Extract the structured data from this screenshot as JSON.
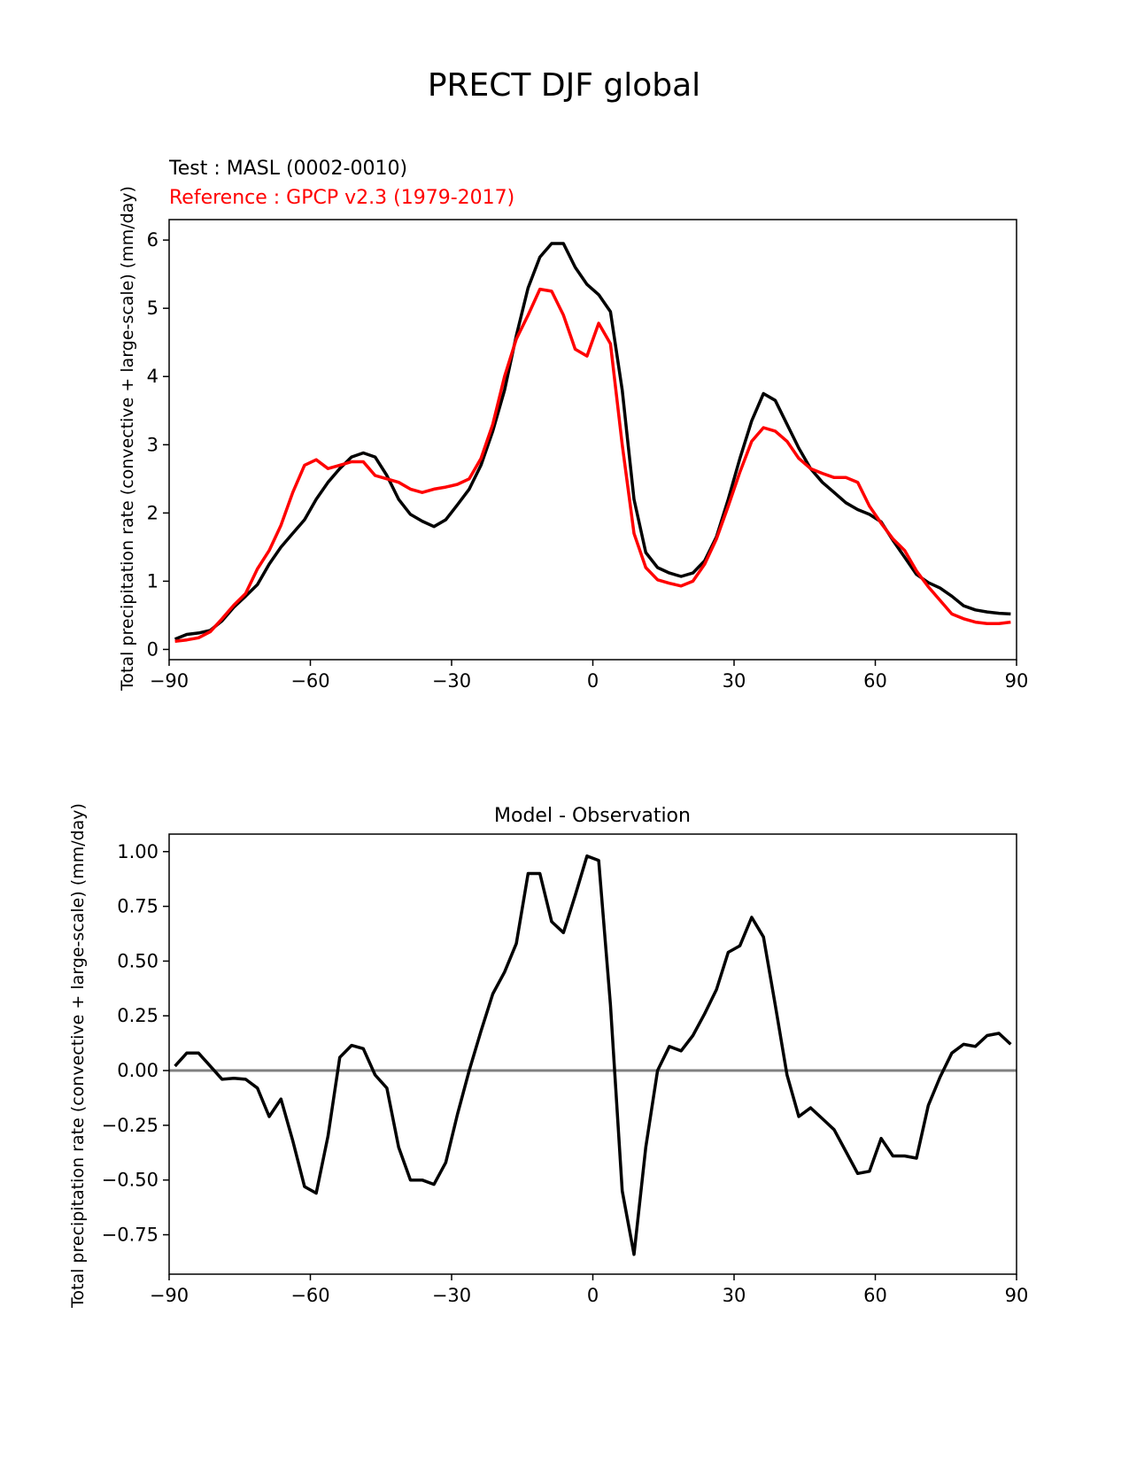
{
  "figure": {
    "title": "PRECT DJF global"
  },
  "chart_data": [
    {
      "type": "line",
      "test_label": "Test : MASL (0002-0010)",
      "reference_label": "Reference : GPCP v2.3 (1979-2017)",
      "ylabel": "Total precipitation rate (convective + large-scale) (mm/day)",
      "xlabel": "",
      "xlim": [
        -90,
        90
      ],
      "ylim": [
        -0.15,
        6.3
      ],
      "xticks": [
        "−90",
        "−60",
        "−30",
        "0",
        "30",
        "60",
        "90"
      ],
      "yticks": [
        "0",
        "1",
        "2",
        "3",
        "4",
        "5",
        "6"
      ],
      "grid": false,
      "x": [
        -88.75,
        -86.25,
        -83.75,
        -81.25,
        -78.75,
        -76.25,
        -73.75,
        -71.25,
        -68.75,
        -66.25,
        -63.75,
        -61.25,
        -58.75,
        -56.25,
        -53.75,
        -51.25,
        -48.75,
        -46.25,
        -43.75,
        -41.25,
        -38.75,
        -36.25,
        -33.75,
        -31.25,
        -28.75,
        -26.25,
        -23.75,
        -21.25,
        -18.75,
        -16.25,
        -13.75,
        -11.25,
        -8.75,
        -6.25,
        -3.75,
        -1.25,
        1.25,
        3.75,
        6.25,
        8.75,
        11.25,
        13.75,
        16.25,
        18.75,
        21.25,
        23.75,
        26.25,
        28.75,
        31.25,
        33.75,
        36.25,
        38.75,
        41.25,
        43.75,
        46.25,
        48.75,
        51.25,
        53.75,
        56.25,
        58.75,
        61.25,
        63.75,
        66.25,
        68.75,
        71.25,
        73.75,
        76.25,
        78.75,
        81.25,
        83.75,
        86.25,
        88.75
      ],
      "series": [
        {
          "name": "Test : MASL (0002-0010)",
          "color": "#000000",
          "values": [
            0.15,
            0.22,
            0.24,
            0.28,
            0.42,
            0.62,
            0.78,
            0.95,
            1.25,
            1.5,
            1.7,
            1.9,
            2.2,
            2.45,
            2.65,
            2.82,
            2.88,
            2.82,
            2.55,
            2.2,
            1.98,
            1.88,
            1.8,
            1.9,
            2.12,
            2.35,
            2.7,
            3.2,
            3.8,
            4.6,
            5.3,
            5.75,
            5.95,
            5.95,
            5.6,
            5.35,
            5.2,
            4.95,
            3.8,
            2.2,
            1.42,
            1.2,
            1.12,
            1.07,
            1.12,
            1.3,
            1.65,
            2.2,
            2.8,
            3.35,
            3.75,
            3.65,
            3.3,
            2.95,
            2.65,
            2.45,
            2.3,
            2.15,
            2.05,
            1.98,
            1.87,
            1.6,
            1.35,
            1.1,
            0.98,
            0.9,
            0.78,
            0.64,
            0.58,
            0.55,
            0.53,
            0.52
          ]
        },
        {
          "name": "Reference : GPCP v2.3 (1979-2017)",
          "color": "#ff0000",
          "values": [
            0.12,
            0.14,
            0.17,
            0.26,
            0.45,
            0.65,
            0.82,
            1.18,
            1.45,
            1.82,
            2.3,
            2.7,
            2.78,
            2.65,
            2.7,
            2.75,
            2.75,
            2.55,
            2.5,
            2.45,
            2.35,
            2.3,
            2.35,
            2.38,
            2.42,
            2.5,
            2.8,
            3.3,
            4.0,
            4.55,
            4.9,
            5.28,
            5.25,
            4.9,
            4.4,
            4.3,
            4.78,
            4.48,
            3.0,
            1.7,
            1.2,
            1.02,
            0.97,
            0.93,
            1.0,
            1.25,
            1.62,
            2.1,
            2.6,
            3.05,
            3.25,
            3.2,
            3.05,
            2.8,
            2.65,
            2.58,
            2.52,
            2.52,
            2.45,
            2.1,
            1.85,
            1.62,
            1.45,
            1.15,
            0.92,
            0.72,
            0.52,
            0.45,
            0.4,
            0.38,
            0.38,
            0.4
          ]
        }
      ]
    },
    {
      "type": "line",
      "title": "Model - Observation",
      "ylabel": "Total precipitation rate (convective + large-scale) (mm/day)",
      "xlabel": "",
      "xlim": [
        -90,
        90
      ],
      "ylim": [
        -0.93,
        1.08
      ],
      "xticks": [
        "−90",
        "−60",
        "−30",
        "0",
        "30",
        "60",
        "90"
      ],
      "yticks": [
        "1.00",
        "0.75",
        "0.50",
        "0.25",
        "0.00",
        "−0.25",
        "−0.50",
        "−0.75"
      ],
      "zero_line": {
        "value": 0,
        "color": "#808080"
      },
      "grid": false,
      "x": [
        -88.75,
        -86.25,
        -83.75,
        -81.25,
        -78.75,
        -76.25,
        -73.75,
        -71.25,
        -68.75,
        -66.25,
        -63.75,
        -61.25,
        -58.75,
        -56.25,
        -53.75,
        -51.25,
        -48.75,
        -46.25,
        -43.75,
        -41.25,
        -38.75,
        -36.25,
        -33.75,
        -31.25,
        -28.75,
        -26.25,
        -23.75,
        -21.25,
        -18.75,
        -16.25,
        -13.75,
        -11.25,
        -8.75,
        -6.25,
        -3.75,
        -1.25,
        1.25,
        3.75,
        6.25,
        8.75,
        11.25,
        13.75,
        16.25,
        18.75,
        21.25,
        23.75,
        26.25,
        28.75,
        31.25,
        33.75,
        36.25,
        38.75,
        41.25,
        43.75,
        46.25,
        48.75,
        51.25,
        53.75,
        56.25,
        58.75,
        61.25,
        63.75,
        66.25,
        68.75,
        71.25,
        73.75,
        76.25,
        78.75,
        81.25,
        83.75,
        86.25,
        88.75
      ],
      "series": [
        {
          "color": "#000000",
          "values": [
            0.02,
            0.08,
            0.08,
            0.02,
            -0.04,
            -0.035,
            -0.04,
            -0.08,
            -0.21,
            -0.13,
            -0.32,
            -0.53,
            -0.56,
            -0.3,
            0.06,
            0.115,
            0.1,
            -0.02,
            -0.08,
            -0.35,
            -0.5,
            -0.5,
            -0.52,
            -0.42,
            -0.2,
            0.0,
            0.18,
            0.35,
            0.45,
            0.58,
            0.9,
            0.9,
            0.68,
            0.63,
            0.8,
            0.98,
            0.96,
            0.3,
            -0.55,
            -0.84,
            -0.35,
            0.0,
            0.11,
            0.09,
            0.16,
            0.26,
            0.37,
            0.54,
            0.57,
            0.7,
            0.61,
            0.3,
            -0.02,
            -0.21,
            -0.17,
            -0.22,
            -0.27,
            -0.37,
            -0.47,
            -0.46,
            -0.31,
            -0.39,
            -0.39,
            -0.4,
            -0.16,
            -0.03,
            0.08,
            0.12,
            0.11,
            0.16,
            0.17,
            0.12
          ]
        }
      ]
    }
  ]
}
